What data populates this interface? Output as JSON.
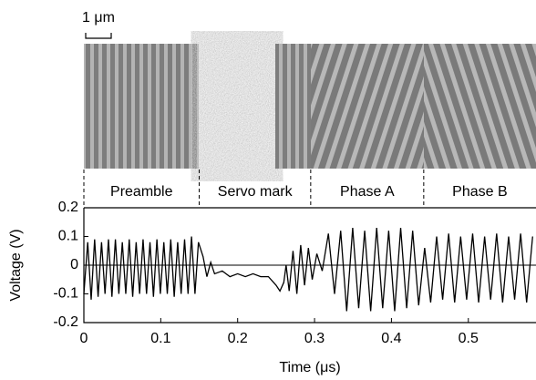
{
  "chart_data": {
    "type": "line",
    "scale_label": "1 μm",
    "section_labels": [
      "Preamble",
      "Servo mark",
      "Phase A",
      "Phase B"
    ],
    "section_boundaries": [
      0,
      0.15,
      0.295,
      0.442
    ],
    "xlabel": "Time (μs)",
    "ylabel": "Voltage (V)",
    "xlim": [
      0,
      0.588
    ],
    "ylim": [
      -0.2,
      0.2
    ],
    "xticks": [
      0,
      0.1,
      0.2,
      0.3,
      0.4,
      0.5
    ],
    "yticks": [
      0.2,
      0.1,
      0,
      -0.1,
      -0.2
    ],
    "zero_line": true,
    "color": "#000000",
    "x": [
      0,
      0.005,
      0.0095,
      0.014,
      0.0185,
      0.023,
      0.0275,
      0.032,
      0.0365,
      0.041,
      0.0455,
      0.05,
      0.0545,
      0.059,
      0.0635,
      0.068,
      0.0725,
      0.077,
      0.0815,
      0.086,
      0.0905,
      0.095,
      0.0995,
      0.104,
      0.1085,
      0.113,
      0.1175,
      0.122,
      0.1265,
      0.131,
      0.1355,
      0.14,
      0.1445,
      0.149,
      0.155,
      0.16,
      0.165,
      0.17,
      0.18,
      0.19,
      0.2,
      0.21,
      0.22,
      0.23,
      0.24,
      0.25,
      0.255,
      0.26,
      0.263,
      0.267,
      0.272,
      0.277,
      0.282,
      0.287,
      0.292,
      0.297,
      0.303,
      0.31,
      0.318,
      0.326,
      0.334,
      0.3418,
      0.3496,
      0.3574,
      0.3652,
      0.373,
      0.3808,
      0.3886,
      0.3964,
      0.4042,
      0.412,
      0.4198,
      0.4276,
      0.4354,
      0.4432,
      0.451,
      0.4588,
      0.4666,
      0.4744,
      0.4822,
      0.49,
      0.4978,
      0.5056,
      0.5134,
      0.5212,
      0.529,
      0.5368,
      0.5446,
      0.5524,
      0.5602,
      0.568,
      0.5758,
      0.5836
    ],
    "values": [
      -0.1,
      0.08,
      -0.12,
      0.09,
      -0.11,
      0.08,
      -0.1,
      0.09,
      -0.11,
      0.09,
      -0.1,
      0.08,
      -0.1,
      0.09,
      -0.11,
      0.08,
      -0.1,
      0.09,
      -0.1,
      0.08,
      -0.11,
      0.09,
      -0.1,
      0.08,
      -0.1,
      0.09,
      -0.11,
      0.08,
      -0.1,
      0.09,
      -0.1,
      0.1,
      -0.1,
      0.08,
      0.03,
      -0.04,
      0.01,
      -0.03,
      -0.02,
      -0.04,
      -0.03,
      -0.04,
      -0.03,
      -0.04,
      -0.04,
      -0.07,
      -0.09,
      -0.06,
      0.0,
      -0.09,
      0.05,
      -0.1,
      0.07,
      -0.07,
      0.06,
      -0.05,
      0.04,
      -0.02,
      0.11,
      -0.1,
      0.12,
      -0.16,
      0.13,
      -0.15,
      0.12,
      -0.16,
      0.13,
      -0.15,
      0.12,
      -0.16,
      0.13,
      -0.15,
      0.12,
      -0.14,
      0.06,
      -0.13,
      0.1,
      -0.12,
      0.11,
      -0.13,
      0.1,
      -0.12,
      0.11,
      -0.13,
      0.1,
      -0.12,
      0.11,
      -0.13,
      0.1,
      -0.12,
      0.11,
      -0.13,
      0.1
    ]
  }
}
